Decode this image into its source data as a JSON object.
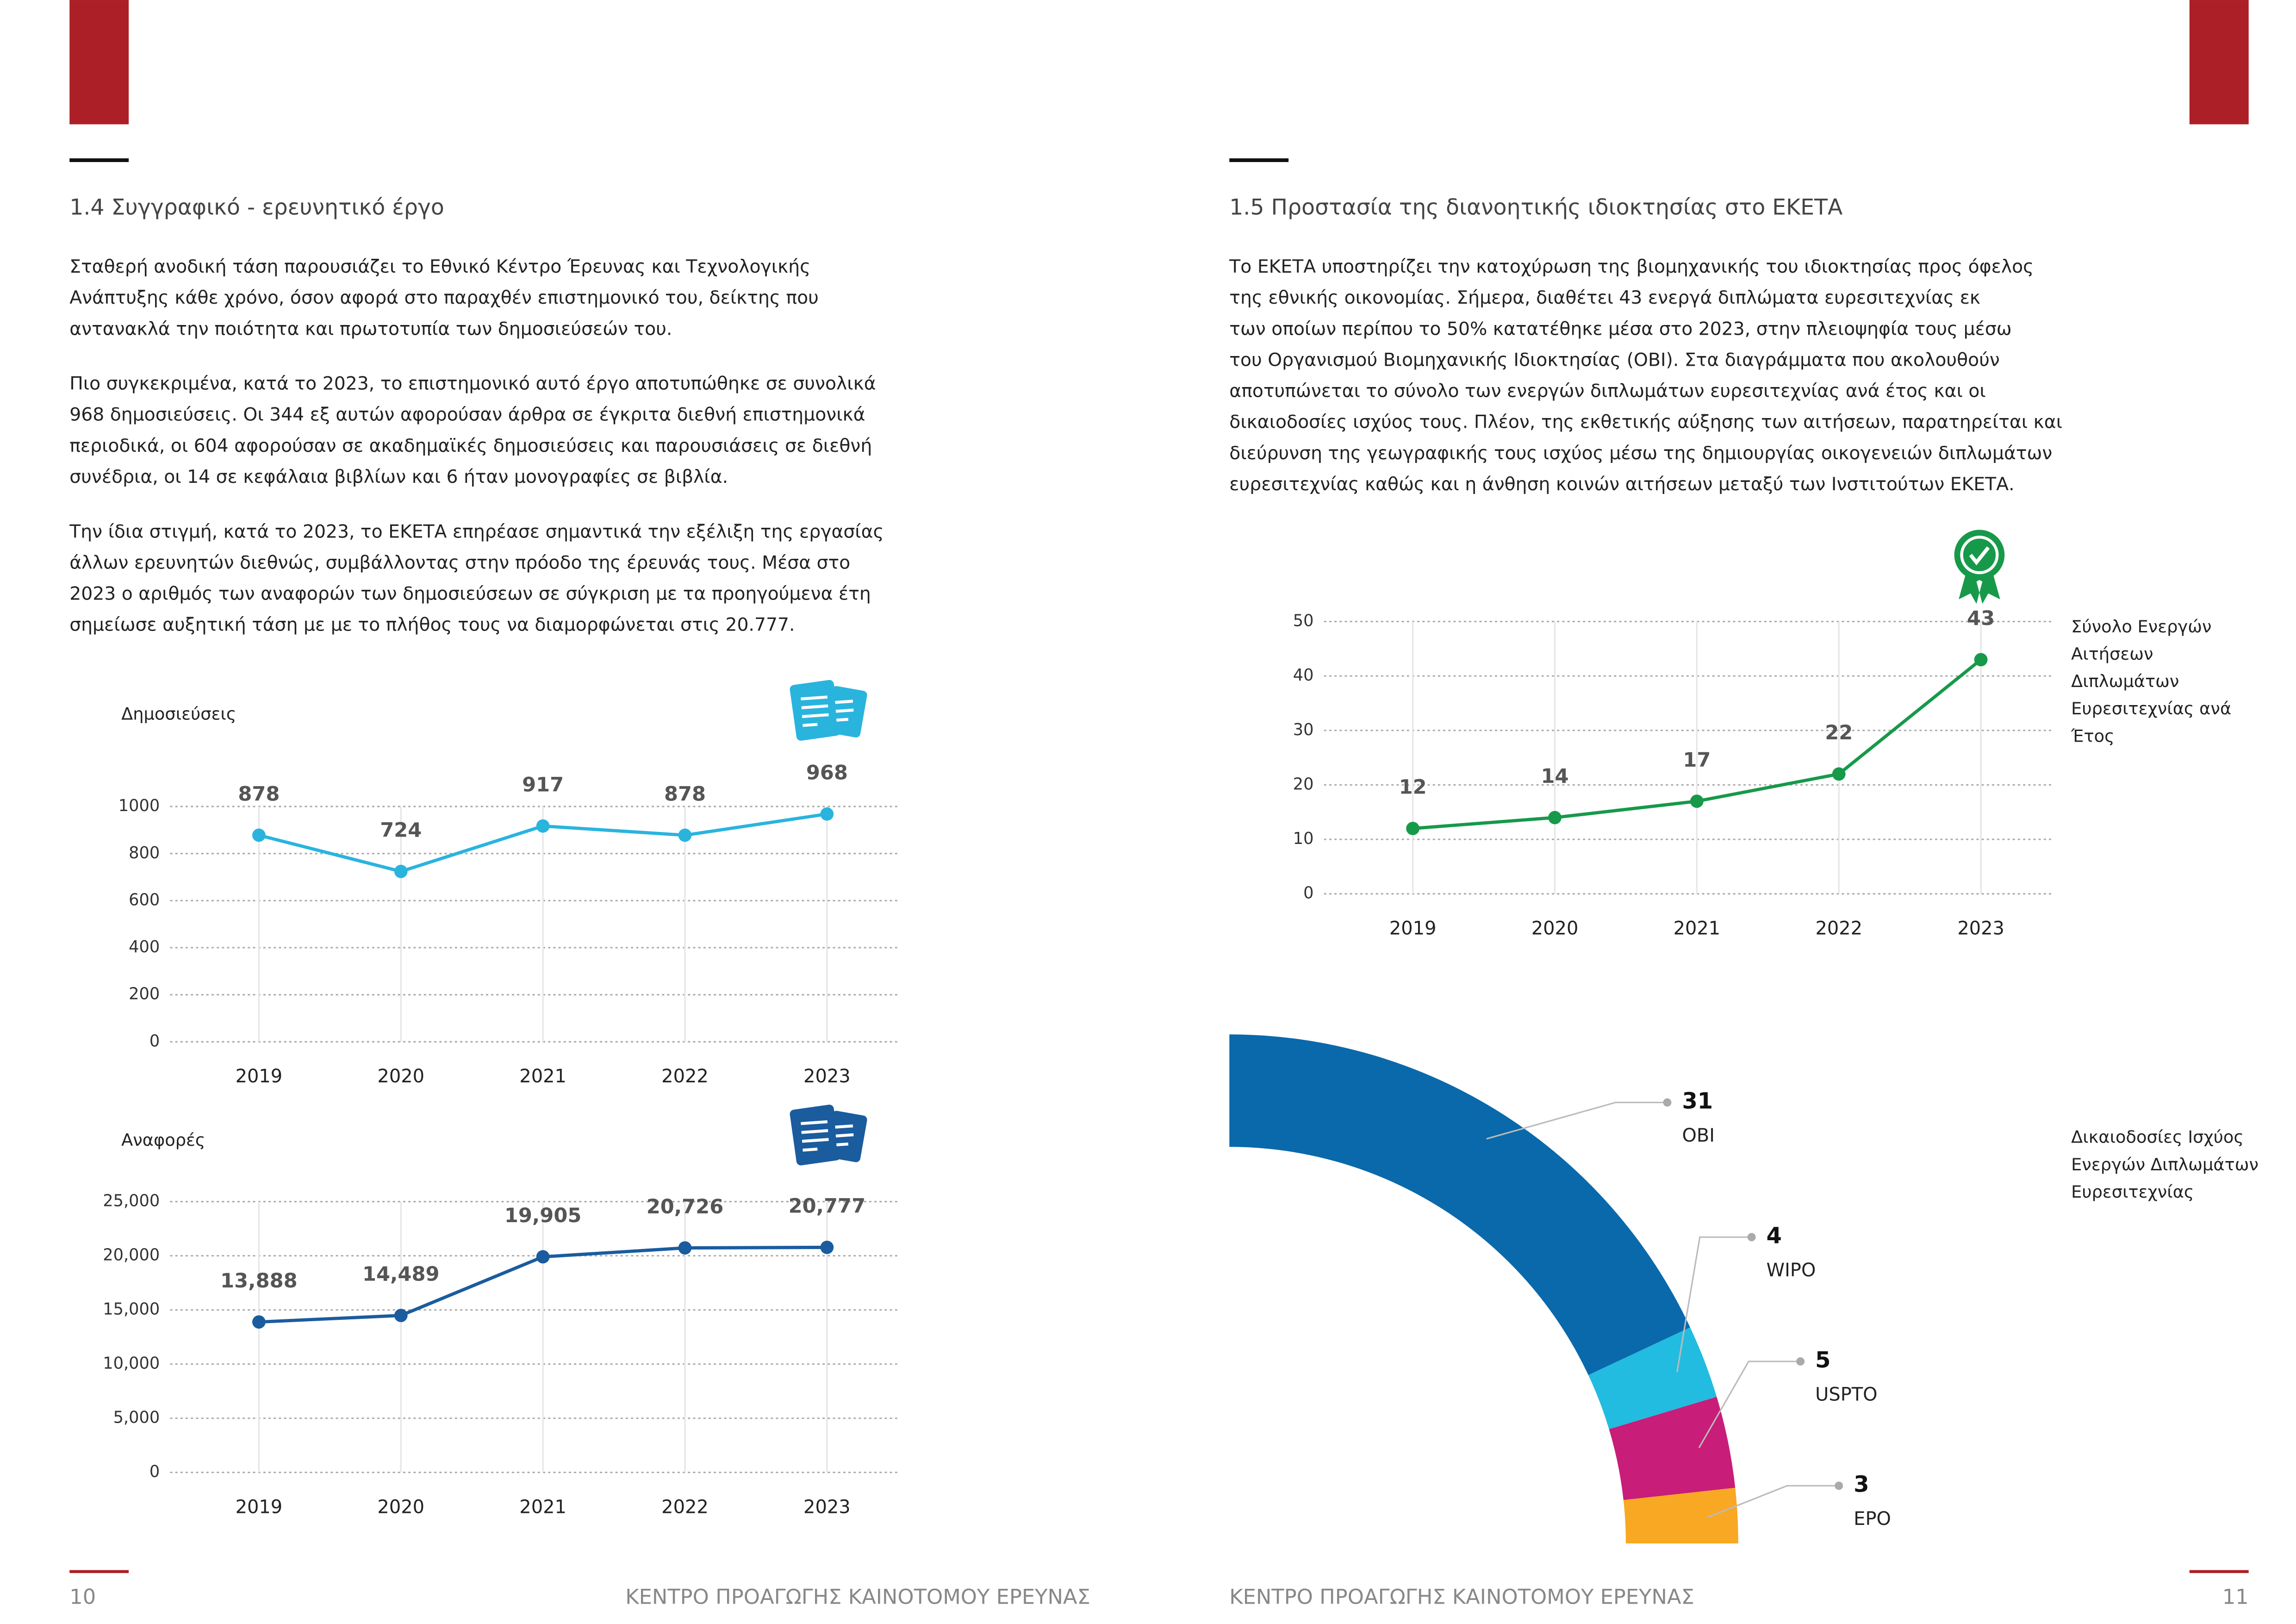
{
  "left_page": {
    "section_title": "1.4 Συγγραφικό - ερευνητικό έργο",
    "paragraphs": [
      [
        "Σταθερή ανοδική τάση παρουσιάζει το Εθνικό Κέντρο Έρευνας και Τεχνολογικής",
        "Ανάπτυξης κάθε χρόνο, όσον αφορά στο παραχθέν επιστημονικό του, δείκτης που",
        "αντανακλά την ποιότητα και πρωτοτυπία των δημοσιεύσεών του."
      ],
      [
        "Πιο συγκεκριμένα, κατά το 2023, το επιστημονικό αυτό έργο αποτυπώθηκε σε συνολικά",
        "968 δημοσιεύσεις. Οι 344 εξ αυτών αφορούσαν άρθρα σε έγκριτα διεθνή επιστημονικά",
        "περιοδικά, οι 604 αφορούσαν σε ακαδημαϊκές δημοσιεύσεις  και παρουσιάσεις σε διεθνή",
        "συνέδρια, οι 14 σε κεφάλαια βιβλίων και 6 ήταν μονογραφίες σε βιβλία."
      ],
      [
        "Την ίδια στιγμή, κατά το 2023, το ΕΚΕΤΑ επηρέασε σημαντικά την εξέλιξη της εργασίας",
        "άλλων ερευνητών διεθνώς, συμβάλλοντας στην πρόοδο της έρευνάς τους. Μέσα  στο",
        "2023 ο αριθμός των αναφορών των δημοσιεύσεων σε σύγκριση με τα προηγούμενα έτη",
        "σημείωσε αυξητική τάση με με το πλήθος τους να διαμορφώνεται στις 20.777."
      ]
    ],
    "page_number": "10",
    "footer_text": "ΚΕΝΤΡΟ ΠΡΟΑΓΩΓΗΣ ΚΑΙΝΟΤΟΜΟΥ ΕΡΕΥΝΑΣ"
  },
  "right_page": {
    "section_title": "1.5 Προστασία της διανοητικής ιδιοκτησίας στο ΕΚΕΤΑ",
    "paragraphs": [
      [
        "Το ΕΚΕΤΑ υποστηρίζει την κατοχύρωση της βιομηχανικής του ιδιοκτησίας προς όφελος",
        "της εθνικής οικονομίας. Σήμερα, διαθέτει 43 ενεργά διπλώματα ευρεσιτεχνίας εκ",
        "των οποίων περίπου το 50% κατατέθηκε μέσα στο 2023, στην πλειοψηφία τους μέσω",
        "του Οργανισμού Βιομηχανικής Ιδιοκτησίας (ΟΒΙ). Στα διαγράμματα που ακολουθούν",
        "αποτυπώνεται το σύνολο των ενεργών διπλωμάτων ευρεσιτεχνίας ανά έτος και οι",
        "δικαιοδοσίες ισχύος τους. Πλέον, της εκθετικής αύξησης των αιτήσεων, παρατηρείται και",
        "διεύρυνση της γεωγραφικής τους ισχύος μέσω της δημιουργίας οικογενειών διπλωμάτων",
        "ευρεσιτεχνίας καθώς και η άνθηση κοινών αιτήσεων μεταξύ των Ινστιτούτων ΕΚΕΤΑ."
      ]
    ],
    "page_number": "11",
    "footer_text": "ΚΕΝΤΡΟ ΠΡΟΑΓΩΓΗΣ ΚΑΙΝΟΤΟΜΟΥ ΕΡΕΥΝΑΣ"
  },
  "chart_data": [
    {
      "type": "line",
      "title": "Δημοσιεύσεις",
      "color": "#29b4de",
      "categories": [
        "2019",
        "2020",
        "2021",
        "2022",
        "2023"
      ],
      "values": [
        878,
        724,
        917,
        878,
        968
      ],
      "ylim": [
        0,
        1000
      ],
      "yticks": [
        0,
        200,
        400,
        600,
        800,
        1000
      ],
      "grid": true
    },
    {
      "type": "line",
      "title": "Αναφορές",
      "color": "#1a5c9e",
      "categories": [
        "2019",
        "2020",
        "2021",
        "2022",
        "2023"
      ],
      "values": [
        13888,
        14489,
        19905,
        20726,
        20777
      ],
      "value_labels": [
        "13,888",
        "14,489",
        "19,905",
        "20,726",
        "20,777"
      ],
      "ylim": [
        0,
        25000
      ],
      "yticks": [
        0,
        {
          "value": 5000,
          "label": "5,000"
        },
        {
          "value": 10000,
          "label": "10,000"
        },
        {
          "value": 15000,
          "label": "15,000"
        },
        {
          "value": 20000,
          "label": "20,000"
        },
        {
          "value": 25000,
          "label": "25,000"
        }
      ],
      "grid": true
    },
    {
      "type": "line",
      "title_lines": [
        "Σύνολο Ενεργών",
        "Αιτήσεων",
        "Διπλωμάτων",
        "Ευρεσιτεχνίας ανά",
        "Έτος"
      ],
      "color": "#17994a",
      "categories": [
        "2019",
        "2020",
        "2021",
        "2022",
        "2023"
      ],
      "values": [
        12,
        14,
        17,
        22,
        43
      ],
      "ylim": [
        0,
        50
      ],
      "yticks": [
        0,
        10,
        20,
        30,
        40,
        50
      ],
      "grid": true
    },
    {
      "type": "donut",
      "title_lines": [
        "Δικαιοδοσίες Ισχύος",
        "Ενεργών Διπλωμάτων",
        "Ευρεσιτεχνίας"
      ],
      "categories": [
        "OBI",
        "WIPO",
        "USPTO",
        "EPO"
      ],
      "values": [
        31,
        4,
        5,
        3
      ],
      "colors": [
        "#0a69ab",
        "#22bce0",
        "#c81d78",
        "#f8a823"
      ]
    }
  ]
}
